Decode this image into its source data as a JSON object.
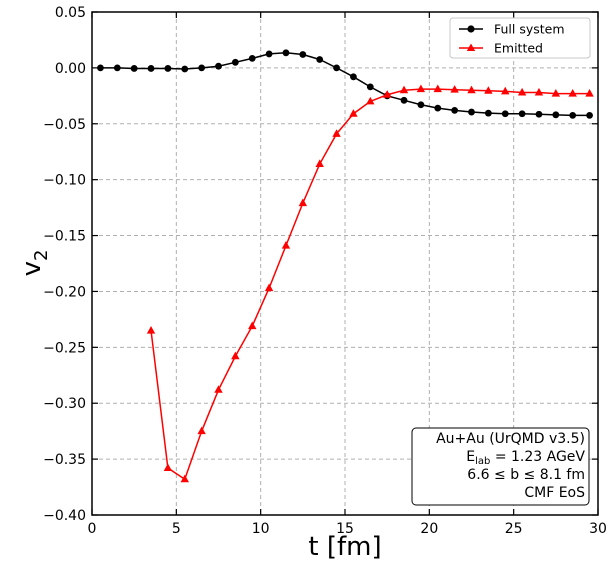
{
  "chart_data": {
    "type": "line",
    "xlabel": "t [fm]",
    "ylabel_main": "v",
    "ylabel_sub": "2",
    "xlim": [
      0,
      30
    ],
    "ylim": [
      -0.4,
      0.05
    ],
    "xticks": [
      0,
      5,
      10,
      15,
      20,
      25,
      30
    ],
    "xtick_labels": [
      "0",
      "5",
      "10",
      "15",
      "20",
      "25",
      "30"
    ],
    "yticks": [
      0.05,
      0.0,
      -0.05,
      -0.1,
      -0.15,
      -0.2,
      -0.25,
      -0.3,
      -0.35,
      -0.4
    ],
    "ytick_labels": [
      "0.05",
      "0.00",
      "−0.05",
      "−0.10",
      "−0.15",
      "−0.20",
      "−0.25",
      "−0.30",
      "−0.35",
      "−0.40"
    ],
    "grid": true,
    "legend_position": "top-right",
    "series": [
      {
        "name": "Full system",
        "color": "#000000",
        "marker": "circle",
        "x": [
          0.5,
          1.5,
          2.5,
          3.5,
          4.5,
          5.5,
          6.5,
          7.5,
          8.5,
          9.5,
          10.5,
          11.5,
          12.5,
          13.5,
          14.5,
          15.5,
          16.5,
          17.5,
          18.5,
          19.5,
          20.5,
          21.5,
          22.5,
          23.5,
          24.5,
          25.5,
          26.5,
          27.5,
          28.5,
          29.5
        ],
        "y": [
          0.0,
          0.0,
          -0.0005,
          -0.0005,
          -0.0005,
          -0.001,
          0.0,
          0.0015,
          0.005,
          0.0085,
          0.0125,
          0.0135,
          0.012,
          0.0075,
          0.0,
          -0.008,
          -0.017,
          -0.025,
          -0.029,
          -0.033,
          -0.036,
          -0.038,
          -0.0395,
          -0.0405,
          -0.041,
          -0.041,
          -0.0415,
          -0.042,
          -0.0425,
          -0.0425
        ]
      },
      {
        "name": "Emitted",
        "color": "#ff0000",
        "marker": "triangle",
        "x": [
          3.5,
          4.5,
          5.5,
          6.5,
          7.5,
          8.5,
          9.5,
          10.5,
          11.5,
          12.5,
          13.5,
          14.5,
          15.5,
          16.5,
          17.5,
          18.5,
          19.5,
          20.5,
          21.5,
          22.5,
          23.5,
          24.5,
          25.5,
          26.5,
          27.5,
          28.5,
          29.5
        ],
        "y": [
          -0.235,
          -0.358,
          -0.368,
          -0.325,
          -0.288,
          -0.258,
          -0.231,
          -0.197,
          -0.159,
          -0.121,
          -0.086,
          -0.059,
          -0.041,
          -0.03,
          -0.024,
          -0.02,
          -0.019,
          -0.019,
          -0.0195,
          -0.02,
          -0.0205,
          -0.021,
          -0.022,
          -0.022,
          -0.023,
          -0.023,
          -0.023
        ]
      }
    ],
    "annotation": {
      "line1": "Au+Au (UrQMD v3.5)",
      "line2_prefix": "E",
      "line2_sub": "lab",
      "line2_suffix": " = 1.23 AGeV",
      "line3": "6.6 ≤ b ≤ 8.1 fm",
      "line4": "CMF EoS"
    }
  }
}
